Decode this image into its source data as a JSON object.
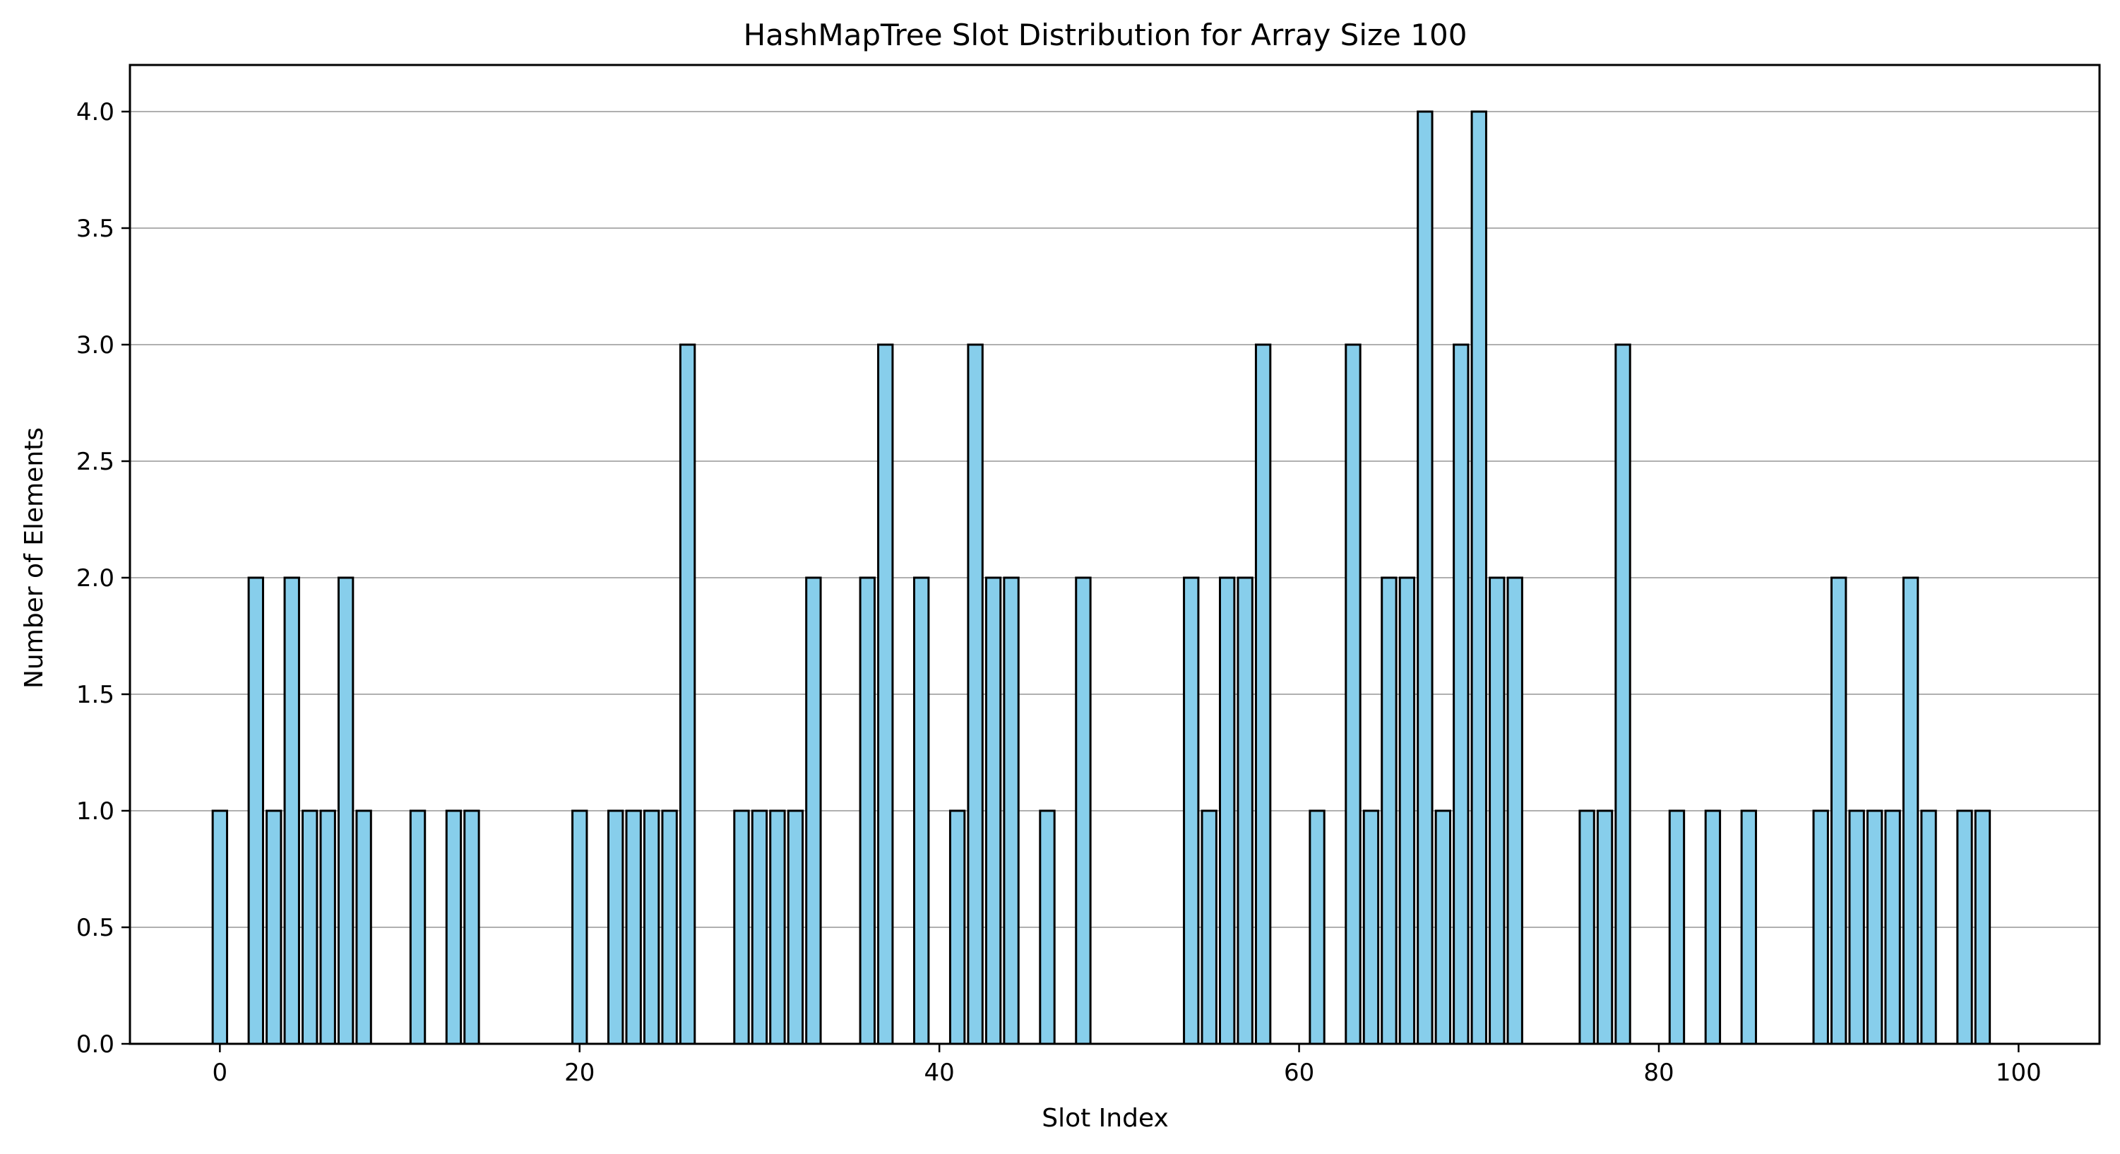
{
  "chart_data": {
    "type": "bar",
    "title": "HashMapTree Slot Distribution for Array Size 100",
    "xlabel": "Slot Index",
    "ylabel": "Number of Elements",
    "xlim": [
      -5,
      104.5
    ],
    "ylim": [
      0,
      4.2
    ],
    "xticks": [
      0,
      20,
      40,
      60,
      80,
      100
    ],
    "xtick_labels": [
      "0",
      "20",
      "40",
      "60",
      "80",
      "100"
    ],
    "yticks": [
      0,
      0.5,
      1,
      1.5,
      2,
      2.5,
      3,
      3.5,
      4
    ],
    "ytick_labels": [
      "0.0",
      "0.5",
      "1.0",
      "1.5",
      "2.0",
      "2.5",
      "3.0",
      "3.5",
      "4.0"
    ],
    "grid": "y",
    "bar_color": "#87ceeb",
    "edge_color": "#000000",
    "x": [
      0,
      1,
      2,
      3,
      4,
      5,
      6,
      7,
      8,
      9,
      10,
      11,
      12,
      13,
      14,
      15,
      16,
      17,
      18,
      19,
      20,
      21,
      22,
      23,
      24,
      25,
      26,
      27,
      28,
      29,
      30,
      31,
      32,
      33,
      34,
      35,
      36,
      37,
      38,
      39,
      40,
      41,
      42,
      43,
      44,
      45,
      46,
      47,
      48,
      49,
      50,
      51,
      52,
      53,
      54,
      55,
      56,
      57,
      58,
      59,
      60,
      61,
      62,
      63,
      64,
      65,
      66,
      67,
      68,
      69,
      70,
      71,
      72,
      73,
      74,
      75,
      76,
      77,
      78,
      79,
      80,
      81,
      82,
      83,
      84,
      85,
      86,
      87,
      88,
      89,
      90,
      91,
      92,
      93,
      94,
      95,
      96,
      97,
      98,
      99
    ],
    "values": [
      1,
      0,
      2,
      1,
      2,
      1,
      1,
      2,
      1,
      0,
      0,
      1,
      0,
      1,
      1,
      0,
      0,
      0,
      0,
      0,
      1,
      0,
      1,
      1,
      1,
      1,
      3,
      0,
      0,
      1,
      1,
      1,
      1,
      2,
      0,
      0,
      2,
      3,
      0,
      2,
      0,
      1,
      3,
      2,
      2,
      0,
      1,
      0,
      2,
      0,
      0,
      0,
      0,
      0,
      2,
      1,
      2,
      2,
      3,
      0,
      0,
      1,
      0,
      3,
      1,
      2,
      2,
      4,
      1,
      3,
      4,
      2,
      2,
      0,
      0,
      0,
      1,
      1,
      3,
      0,
      0,
      1,
      0,
      1,
      0,
      1,
      0,
      0,
      0,
      1,
      2,
      1,
      1,
      1,
      2,
      1,
      0,
      1,
      1,
      0
    ]
  }
}
